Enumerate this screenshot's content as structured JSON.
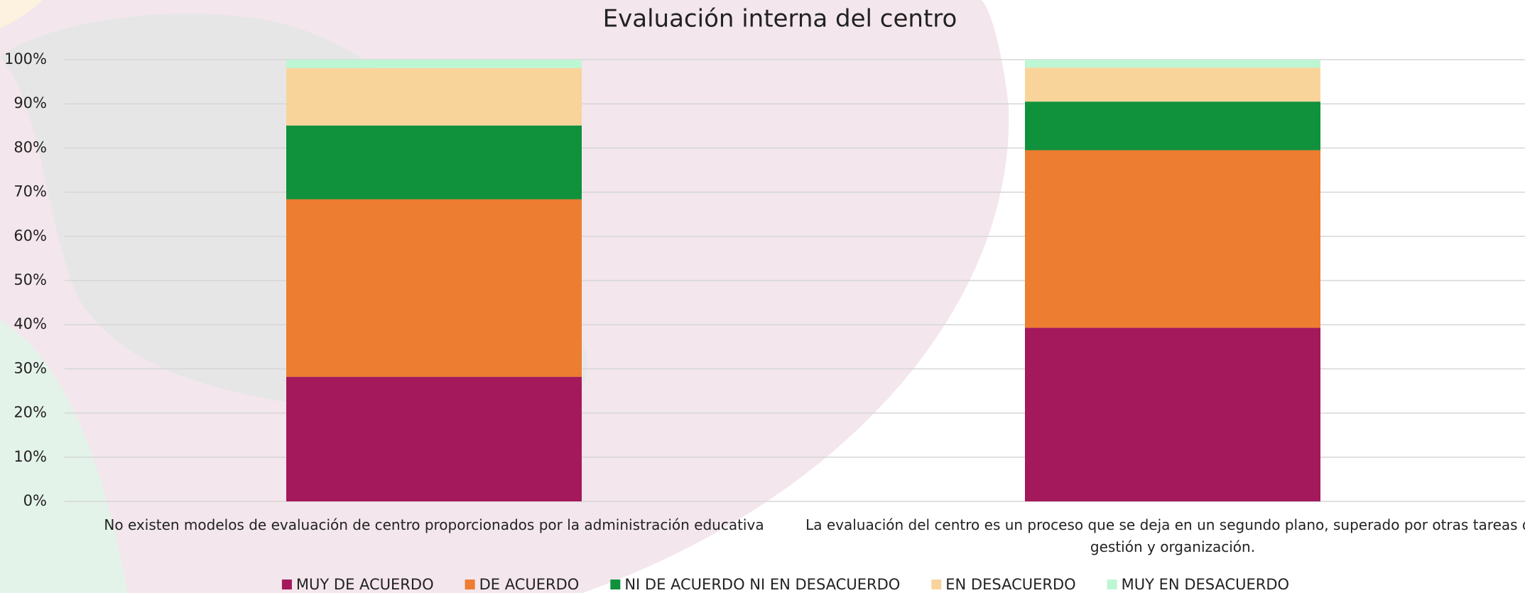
{
  "chart_data": {
    "type": "stacked_bar_100",
    "title": "Evaluación interna del centro",
    "categories": [
      "No existen modelos de evaluación de centro proporcionados por la administración educativa",
      "La evaluación del centro es un proceso que se deja en un segundo plano, superado por otras tareas de gestión y organización."
    ],
    "series": [
      {
        "name": "MUY DE ACUERDO",
        "color": "#a3195b",
        "values": [
          28.2,
          39.3
        ]
      },
      {
        "name": "DE ACUERDO",
        "color": "#ed7d31",
        "values": [
          40.2,
          40.2
        ]
      },
      {
        "name": "NI DE ACUERDO NI EN DESACUERDO",
        "color": "#10913c",
        "values": [
          16.7,
          11
        ]
      },
      {
        "name": "EN DESACUERDO",
        "color": "#f8d49b",
        "values": [
          13,
          7.7
        ]
      },
      {
        "name": "MUY EN DESACUERDO",
        "color": "#bdf6d3",
        "values": [
          1.9,
          1.8
        ]
      }
    ],
    "ylim": [
      0,
      100
    ],
    "yticks": [
      {
        "value": 0,
        "label": "0%"
      },
      {
        "value": 10,
        "label": "10%"
      },
      {
        "value": 20,
        "label": "20%"
      },
      {
        "value": 30,
        "label": "30%"
      },
      {
        "value": 40,
        "label": "40%"
      },
      {
        "value": 50,
        "label": "50%"
      },
      {
        "value": 60,
        "label": "60%"
      },
      {
        "value": 70,
        "label": "70%"
      },
      {
        "value": 80,
        "label": "80%"
      },
      {
        "value": 90,
        "label": "90%"
      },
      {
        "value": 100,
        "label": "100%"
      }
    ],
    "grid": true,
    "legend": "bottom"
  }
}
